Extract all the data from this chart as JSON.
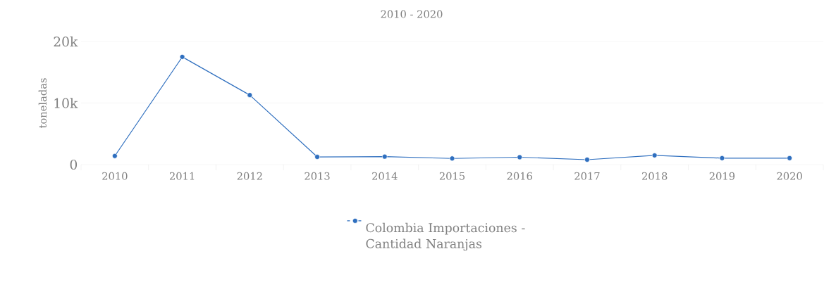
{
  "chart_data": {
    "type": "line",
    "title": "2010 - 2020",
    "ylabel": "toneladas",
    "categories": [
      "2010",
      "2011",
      "2012",
      "2013",
      "2014",
      "2015",
      "2016",
      "2017",
      "2018",
      "2019",
      "2020"
    ],
    "series": [
      {
        "name": "Colombia Importaciones - Cantidad Naranjas",
        "color": "#2f6fbf",
        "values": [
          1400,
          17500,
          11300,
          1250,
          1300,
          1000,
          1200,
          800,
          1500,
          1050,
          1050
        ]
      }
    ],
    "ylim": [
      0,
      20000
    ],
    "yticks": [
      {
        "value": 0,
        "label": "0"
      },
      {
        "value": 10000,
        "label": "10k"
      },
      {
        "value": 20000,
        "label": "20k"
      }
    ],
    "grid": "y",
    "legend": "bottom",
    "marker": "circle",
    "line_style": "solid"
  }
}
